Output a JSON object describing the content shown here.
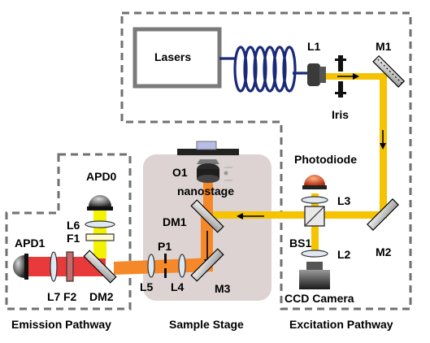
{
  "colors": {
    "excitation_beam": "#f5c300",
    "emission_beam_orange": "#f5892a",
    "emission_beam_red": "#e83a3a",
    "apd0_beam": "#f3f200",
    "stage_background": "#dcd3d2",
    "dashed_border": "#707070",
    "fiber": "#1b2a78",
    "photodiode_dome": "#e04d2a",
    "filter_red": "#c86a6a",
    "lens_fill": "#dfe8f2"
  },
  "labels": {
    "lasers": "Lasers",
    "l1": "L1",
    "m1": "M1",
    "iris": "Iris",
    "photodiode": "Photodiode",
    "l3": "L3",
    "bs1": "BS1",
    "l2": "L2",
    "m2": "M2",
    "ccd_camera": "CCD Camera",
    "o1": "O1",
    "nanostage": "nanostage",
    "dm1": "DM1",
    "m3": "M3",
    "p1": "P1",
    "l5": "L5",
    "l4": "L4",
    "apd0": "APD0",
    "l6": "L6",
    "f1": "F1",
    "apd1": "APD1",
    "l7": "L7",
    "f2": "F2",
    "dm2": "DM2"
  },
  "sections": {
    "emission": "Emission Pathway",
    "sample": "Sample Stage",
    "excitation": "Excitation Pathway"
  }
}
